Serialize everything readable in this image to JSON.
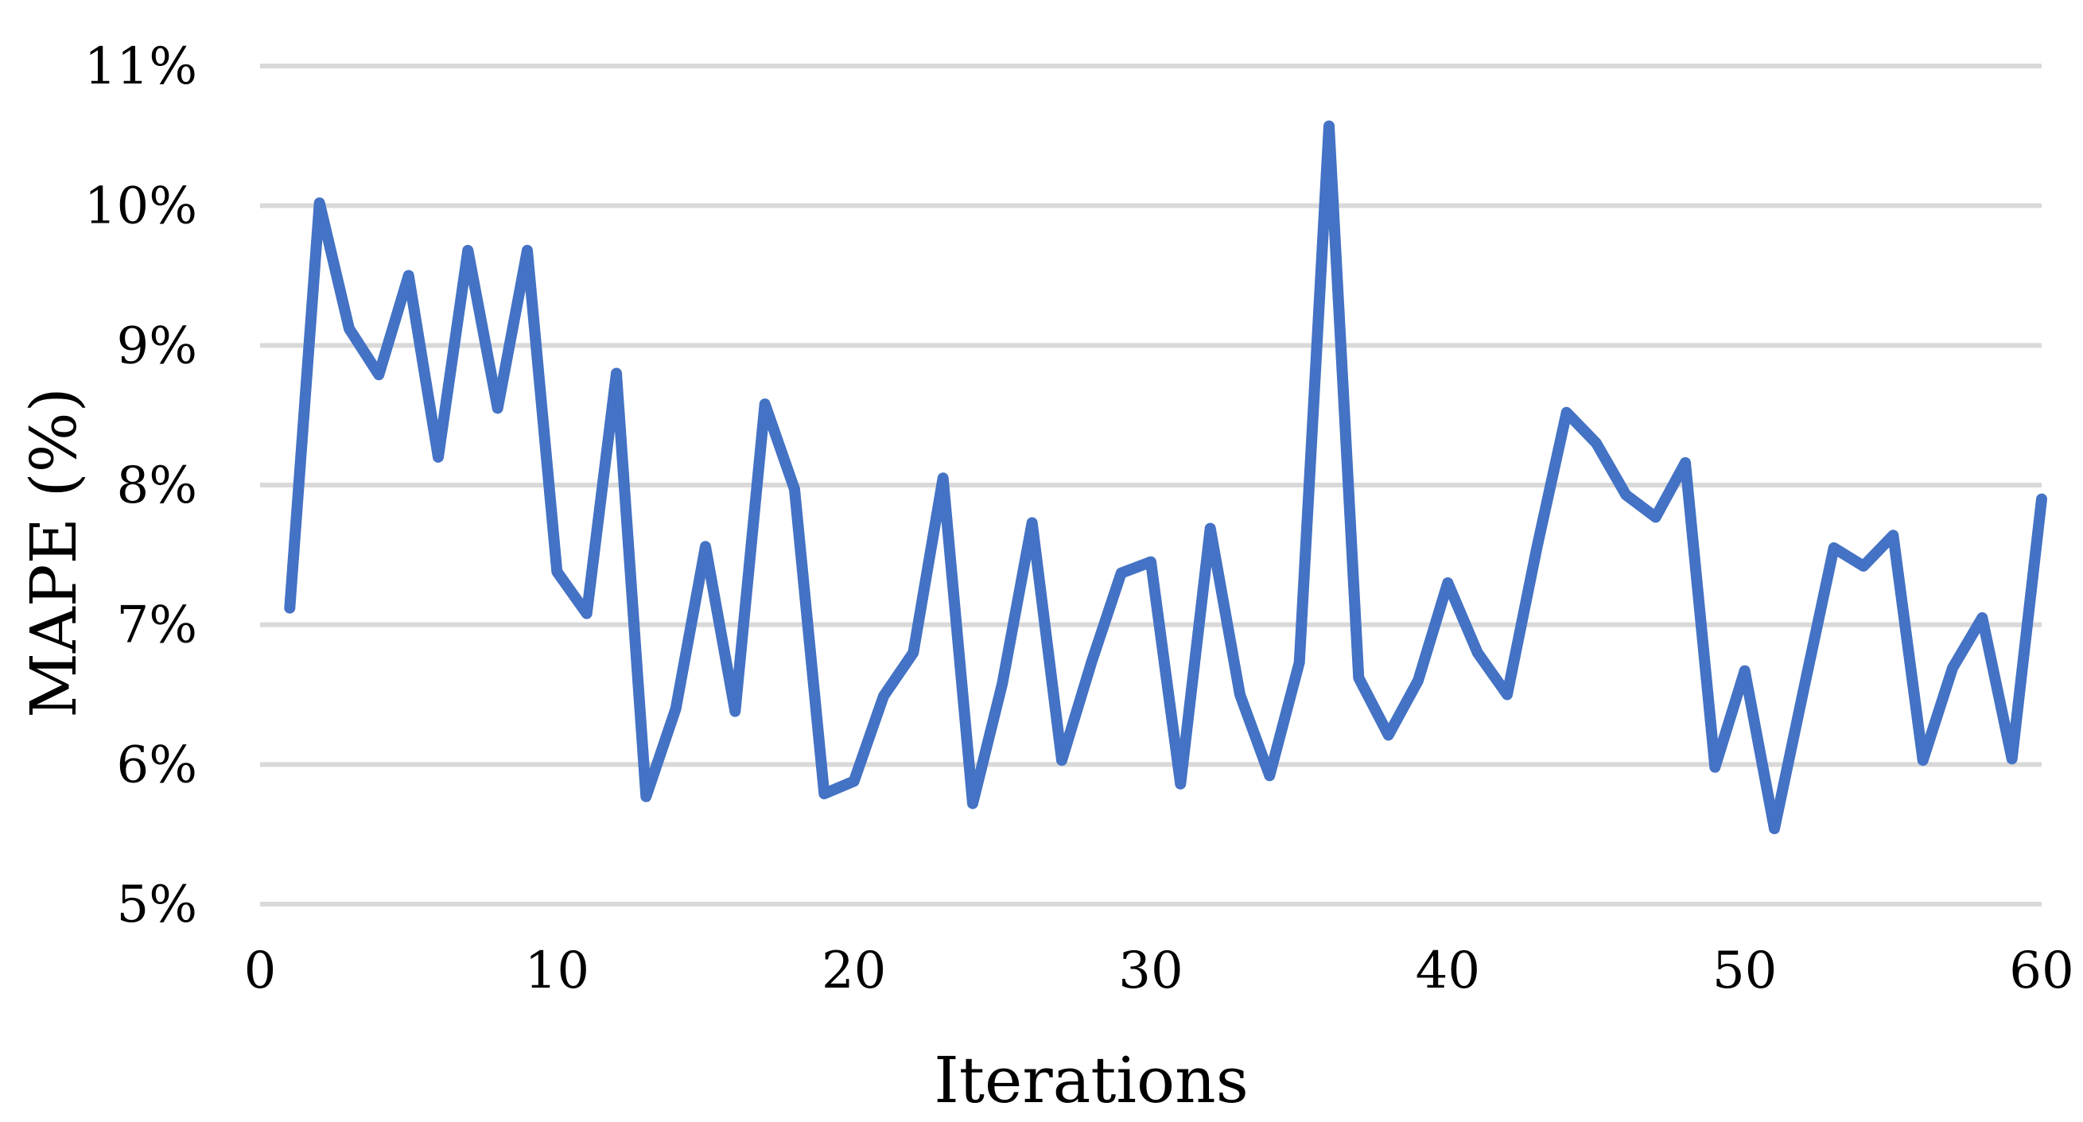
{
  "chart_data": {
    "type": "line",
    "title": "",
    "xlabel": "Iterations",
    "ylabel": "MAPE (%)",
    "xlim": [
      0,
      60
    ],
    "ylim": [
      5,
      11
    ],
    "x_ticks": [
      0,
      10,
      20,
      30,
      40,
      50,
      60
    ],
    "y_ticks": [
      5,
      6,
      7,
      8,
      9,
      10,
      11
    ],
    "y_tick_suffix": "%",
    "grid": "horizontal",
    "legend": "none",
    "series_color": "#4472c4",
    "grid_color": "#d9d9d9",
    "x": [
      1,
      2,
      3,
      4,
      5,
      6,
      7,
      8,
      9,
      10,
      11,
      12,
      13,
      14,
      15,
      16,
      17,
      18,
      19,
      20,
      21,
      22,
      23,
      24,
      25,
      26,
      27,
      28,
      29,
      30,
      31,
      32,
      33,
      34,
      35,
      36,
      37,
      38,
      39,
      40,
      41,
      42,
      43,
      44,
      45,
      46,
      47,
      48,
      49,
      50,
      51,
      52,
      53,
      54,
      55,
      56,
      57,
      58,
      59,
      60
    ],
    "values": [
      7.12,
      10.02,
      9.12,
      8.79,
      9.5,
      8.2,
      9.68,
      8.55,
      9.68,
      7.38,
      7.08,
      8.8,
      5.77,
      6.4,
      7.56,
      6.38,
      8.58,
      7.97,
      5.79,
      5.88,
      6.49,
      6.8,
      8.05,
      5.72,
      6.58,
      7.73,
      6.03,
      6.73,
      7.37,
      7.45,
      5.86,
      7.69,
      6.5,
      5.92,
      6.73,
      10.57,
      6.62,
      6.21,
      6.6,
      7.3,
      6.8,
      6.5,
      7.55,
      8.52,
      8.3,
      7.93,
      7.77,
      8.16,
      5.98,
      6.67,
      5.54,
      6.55,
      7.55,
      7.42,
      7.64,
      6.03,
      6.69,
      7.05,
      6.04,
      7.9
    ]
  }
}
